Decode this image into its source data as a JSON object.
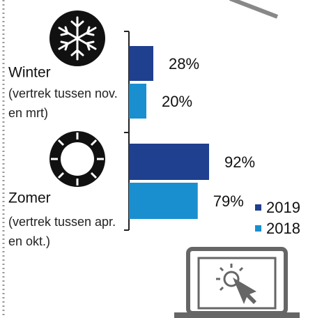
{
  "chart_data": {
    "type": "barh",
    "categories": [
      "Winter",
      "Zomer"
    ],
    "category_subtitles": [
      "(vertrek tussen nov. en mrt)",
      "(vertrek tussen apr. en okt.)"
    ],
    "series": [
      {
        "name": "2019",
        "color": "#1f3f8f",
        "values": [
          28,
          92
        ],
        "value_labels": [
          "28%",
          "92%"
        ]
      },
      {
        "name": "2018",
        "color": "#1a8fd0",
        "values": [
          20,
          79
        ],
        "value_labels": [
          "20%",
          "79%"
        ]
      }
    ],
    "xlim": [
      0,
      100
    ]
  }
}
